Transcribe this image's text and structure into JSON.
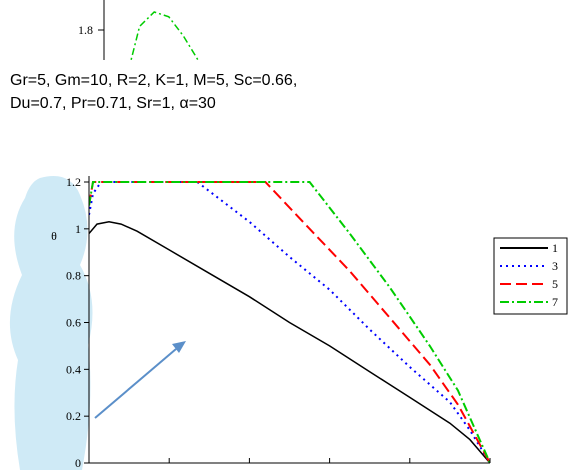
{
  "params": {
    "line1": "Gr=5, Gm=10, R=2, K=1, M=5, Sc=0.66,",
    "line2": "Du=0.7, Pr=0.71, Sr=1, α=30"
  },
  "colors": {
    "series_1": "#000000",
    "series_3": "#0000ff",
    "series_5": "#ff0000",
    "series_7": "#00cc00",
    "arrow": "#5b8fc9",
    "watermark": "#a8d8ee"
  },
  "chart_data": [
    {
      "type": "line",
      "title": "",
      "xlabel": "",
      "ylabel": "",
      "y_tick_labels": [
        "1.8"
      ],
      "series": [
        {
          "style": "dash-dot",
          "color": "#00cc00",
          "x": [
            0.0,
            0.2,
            0.4,
            0.6,
            0.8,
            1.0
          ],
          "y": [
            1.6,
            1.84,
            1.9,
            1.88,
            1.8,
            1.7
          ]
        }
      ],
      "ylim": [
        1.7,
        1.95
      ]
    },
    {
      "type": "line",
      "title": "",
      "xlabel": "",
      "ylabel": "θ",
      "xlim": [
        0,
        1
      ],
      "ylim": [
        0,
        1.2
      ],
      "y_ticks": [
        0,
        0.2,
        0.4,
        0.6,
        0.8,
        1,
        1.2
      ],
      "y_tick_labels": [
        "0",
        "0.2",
        "0.4",
        "0.6",
        "0.8",
        "1",
        "1.2"
      ],
      "grid": false,
      "legend_position": "right",
      "series": [
        {
          "name": "1",
          "style": "solid",
          "color": "#000000",
          "x": [
            0,
            0.02,
            0.05,
            0.08,
            0.12,
            0.2,
            0.3,
            0.4,
            0.5,
            0.6,
            0.7,
            0.8,
            0.9,
            0.95,
            1.0
          ],
          "y": [
            0.98,
            1.02,
            1.03,
            1.02,
            0.99,
            0.91,
            0.81,
            0.71,
            0.6,
            0.5,
            0.39,
            0.28,
            0.17,
            0.1,
            0.0
          ]
        },
        {
          "name": "3",
          "style": "dotted",
          "color": "#0000ff",
          "x": [
            0,
            0.01,
            0.03,
            0.27,
            0.4,
            0.5,
            0.6,
            0.7,
            0.8,
            0.9,
            0.95,
            1.0
          ],
          "y": [
            1.06,
            1.15,
            1.2,
            1.2,
            1.03,
            0.88,
            0.74,
            0.57,
            0.41,
            0.26,
            0.14,
            0.0
          ]
        },
        {
          "name": "5",
          "style": "dashed",
          "color": "#ff0000",
          "x": [
            0,
            0.01,
            0.02,
            0.44,
            0.55,
            0.65,
            0.75,
            0.85,
            0.92,
            1.0
          ],
          "y": [
            1.1,
            1.2,
            1.2,
            1.2,
            1.0,
            0.82,
            0.62,
            0.42,
            0.25,
            0.0
          ]
        },
        {
          "name": "7",
          "style": "dash-dot",
          "color": "#00cc00",
          "x": [
            0,
            0.01,
            0.02,
            0.55,
            0.65,
            0.75,
            0.85,
            0.92,
            1.0
          ],
          "y": [
            1.1,
            1.2,
            1.2,
            1.2,
            0.98,
            0.75,
            0.5,
            0.31,
            0.0
          ]
        }
      ]
    }
  ]
}
